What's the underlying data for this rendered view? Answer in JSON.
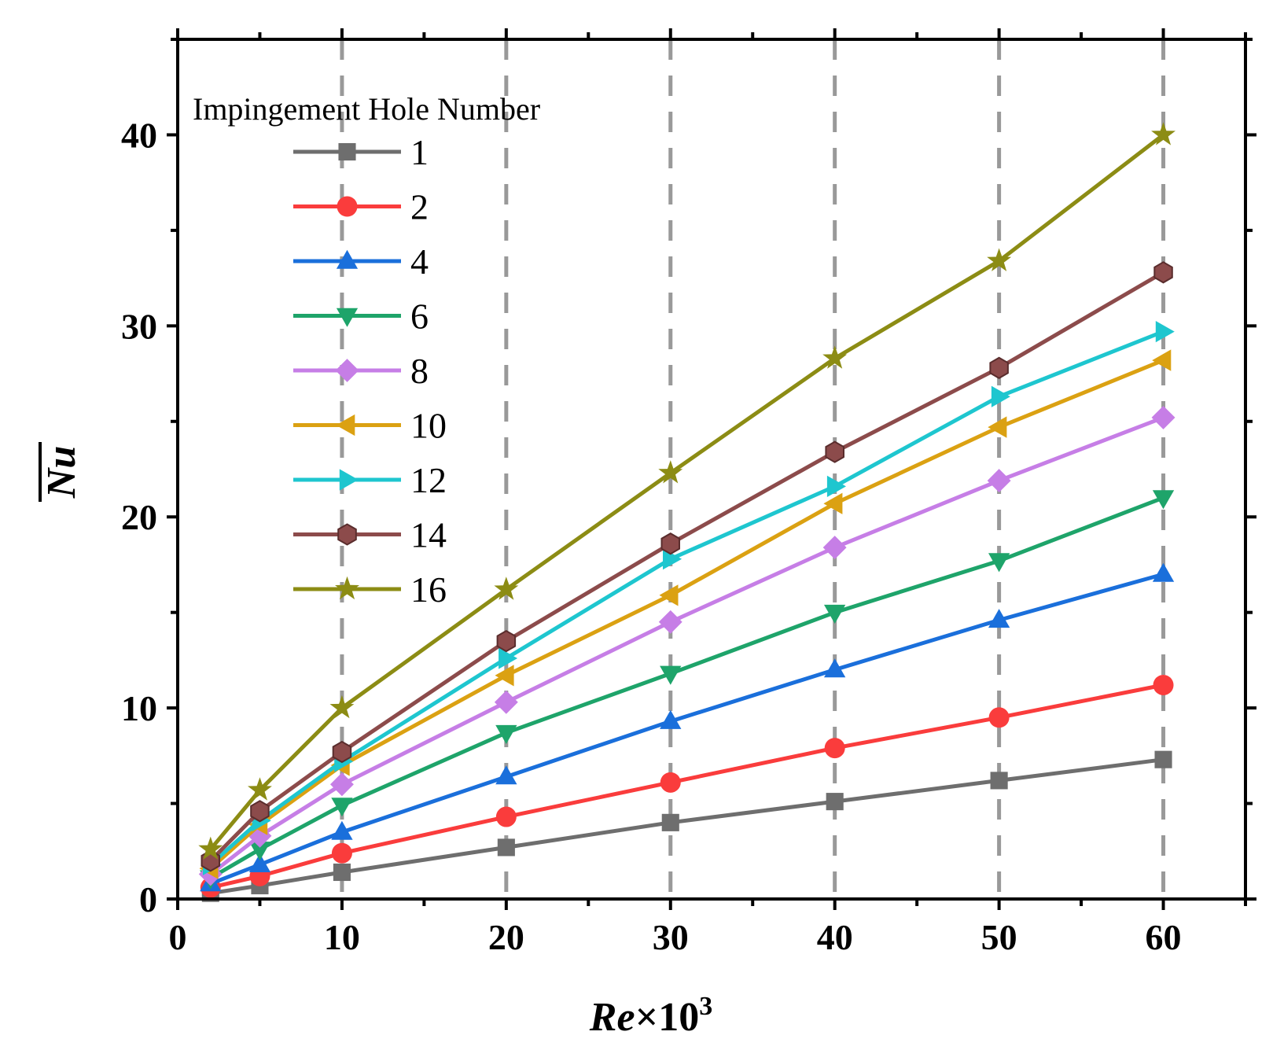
{
  "chart_data": {
    "type": "line",
    "title": "",
    "xlabel": "Re×10³",
    "xlabel_parts": {
      "main": "Re",
      "times": "×10",
      "sup": "3"
    },
    "ylabel": "Nu",
    "xlim": [
      0,
      65
    ],
    "ylim": [
      0,
      45
    ],
    "xticks": [
      0,
      10,
      20,
      30,
      40,
      50,
      60
    ],
    "yticks": [
      0,
      10,
      20,
      30,
      40
    ],
    "xtick_labels": [
      "0",
      "10",
      "20",
      "30",
      "40",
      "50",
      "60"
    ],
    "ytick_labels": [
      "0",
      "10",
      "20",
      "30",
      "40"
    ],
    "reference_lines_x": [
      10,
      20,
      30,
      40,
      50,
      60
    ],
    "reference_line_color": "#999999",
    "legend_title": "Impingement Hole Number",
    "legend_position": "top-left",
    "x": [
      2,
      5,
      10,
      20,
      30,
      40,
      50,
      60
    ],
    "series": [
      {
        "name": "1",
        "color": "#6e6e6e",
        "marker": "square",
        "values": [
          0.3,
          0.7,
          1.4,
          2.7,
          4.0,
          5.1,
          6.2,
          7.3
        ]
      },
      {
        "name": "2",
        "color": "#fa3c3c",
        "marker": "circle",
        "values": [
          0.6,
          1.2,
          2.4,
          4.3,
          6.1,
          7.9,
          9.5,
          11.2
        ]
      },
      {
        "name": "4",
        "color": "#1a6fdb",
        "marker": "triangle-up",
        "values": [
          0.8,
          1.8,
          3.5,
          6.4,
          9.3,
          12.0,
          14.6,
          17.0
        ]
      },
      {
        "name": "6",
        "color": "#1ea46a",
        "marker": "triangle-down",
        "values": [
          1.1,
          2.6,
          4.9,
          8.7,
          11.8,
          15.0,
          17.7,
          21.0
        ]
      },
      {
        "name": "8",
        "color": "#c67ee6",
        "marker": "diamond",
        "values": [
          1.3,
          3.3,
          6.0,
          10.3,
          14.5,
          18.4,
          21.9,
          25.2
        ]
      },
      {
        "name": "10",
        "color": "#dba112",
        "marker": "triangle-left",
        "values": [
          1.6,
          3.9,
          7.0,
          11.7,
          15.9,
          20.7,
          24.7,
          28.2
        ]
      },
      {
        "name": "12",
        "color": "#1ec6cf",
        "marker": "triangle-right",
        "values": [
          1.8,
          4.1,
          7.2,
          12.6,
          17.8,
          21.6,
          26.3,
          29.7
        ]
      },
      {
        "name": "14",
        "color": "#8c4b4b",
        "marker": "hexagon",
        "values": [
          2.0,
          4.6,
          7.7,
          13.5,
          18.6,
          23.4,
          27.8,
          32.8
        ]
      },
      {
        "name": "16",
        "color": "#8c8c14",
        "marker": "star",
        "values": [
          2.6,
          5.7,
          10.0,
          16.2,
          22.3,
          28.3,
          33.4,
          40.0
        ]
      }
    ]
  }
}
